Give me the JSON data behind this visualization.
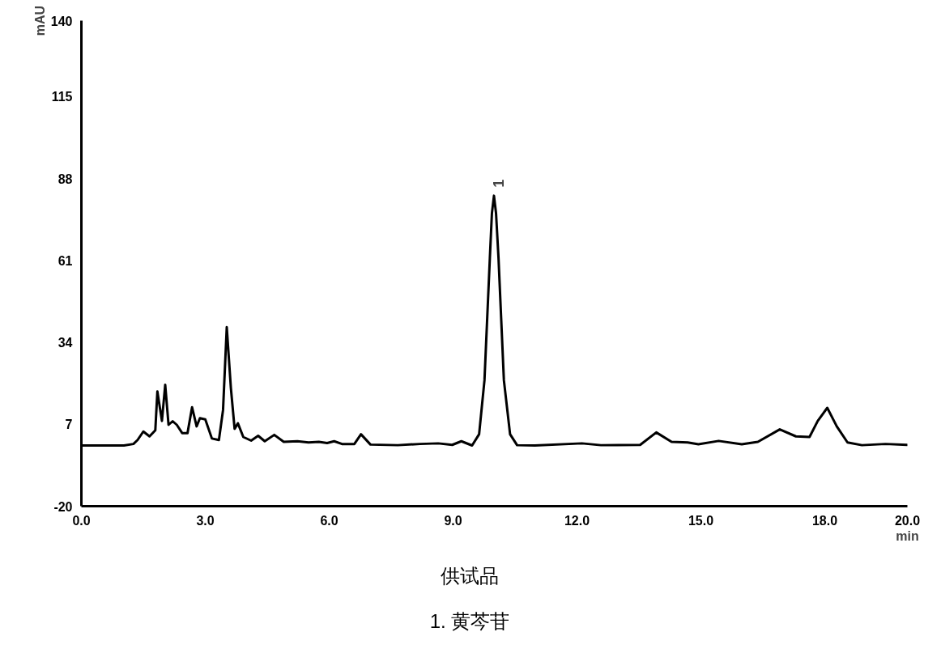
{
  "chart_data": {
    "type": "line",
    "xlabel": "min",
    "ylabel": "mAU",
    "x": [
      0,
      1.03,
      1.26,
      1.36,
      1.5,
      1.65,
      1.79,
      1.84,
      1.95,
      2.03,
      2.11,
      2.21,
      2.31,
      2.44,
      2.57,
      2.68,
      2.79,
      2.87,
      3.0,
      3.16,
      3.33,
      3.43,
      3.52,
      3.62,
      3.71,
      3.79,
      3.92,
      4.11,
      4.28,
      4.44,
      4.67,
      4.9,
      5.23,
      5.5,
      5.75,
      5.95,
      6.12,
      6.31,
      6.61,
      6.77,
      7.0,
      7.66,
      8.2,
      8.64,
      8.98,
      9.2,
      9.46,
      9.63,
      9.76,
      9.89,
      9.94,
      9.99,
      10.04,
      10.1,
      10.23,
      10.38,
      10.55,
      10.98,
      12.12,
      12.58,
      13.53,
      13.92,
      14.29,
      14.68,
      14.94,
      15.43,
      15.99,
      16.38,
      16.91,
      17.3,
      17.63,
      17.83,
      18.06,
      18.29,
      18.55,
      18.9,
      19.47,
      19.99
    ],
    "series": [
      {
        "color": "#000000",
        "values": [
          0,
          0,
          0.5,
          1.8,
          4.6,
          3.0,
          5.0,
          17.8,
          8.1,
          20.0,
          6.8,
          8.0,
          6.8,
          4.1,
          4.1,
          12.6,
          6.3,
          9.0,
          8.6,
          2.3,
          1.8,
          11.7,
          39.0,
          18.9,
          5.5,
          7.3,
          2.8,
          1.6,
          3.2,
          1.4,
          3.5,
          1.2,
          1.4,
          1.0,
          1.2,
          0.8,
          1.4,
          0.5,
          0.5,
          3.7,
          0.3,
          0.1,
          0.5,
          0.7,
          0.2,
          1.4,
          0,
          3.7,
          21.5,
          61.7,
          76.5,
          82.3,
          76.5,
          61.7,
          21.5,
          3.7,
          0.1,
          0,
          0.7,
          0.1,
          0.2,
          4.3,
          1.2,
          1.0,
          0.4,
          1.5,
          0.4,
          1.2,
          5.3,
          3.0,
          2.8,
          8.1,
          12.4,
          6.3,
          1.0,
          0.1,
          0.5,
          0.2
        ]
      }
    ],
    "xlim": [
      0,
      20
    ],
    "xticks": [
      {
        "value": 0,
        "label": "0.0"
      },
      {
        "value": 3,
        "label": "3.0"
      },
      {
        "value": 6,
        "label": "6.0"
      },
      {
        "value": 9,
        "label": "9.0"
      },
      {
        "value": 12,
        "label": "12.0"
      },
      {
        "value": 15,
        "label": "15.0"
      },
      {
        "value": 18,
        "label": "18.0"
      },
      {
        "value": 20,
        "label": "20.0"
      }
    ],
    "ylim": [
      -20,
      140
    ],
    "yticks": [
      -20,
      7,
      34,
      61,
      88,
      115,
      140
    ],
    "grid": false,
    "line_style": "solid",
    "annotations": [
      {
        "text": "1",
        "x": 9.99,
        "y": 82.3
      },
      "供试品",
      "1. 黄芩苷"
    ]
  }
}
